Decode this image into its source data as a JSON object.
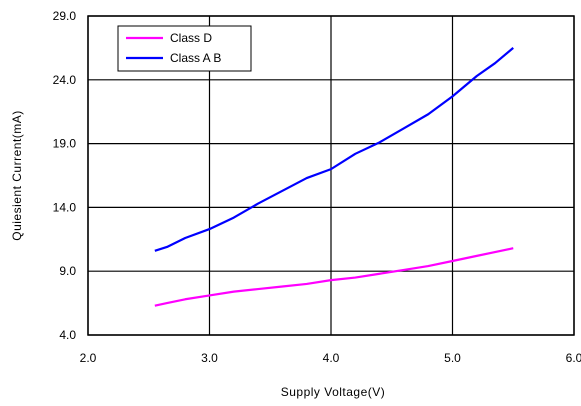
{
  "chart_data": {
    "type": "line",
    "title": "",
    "xlabel": "Supply Voltage(V)",
    "ylabel": "Quiesient Current(mA)",
    "xlim": [
      2.0,
      6.0
    ],
    "ylim": [
      4.0,
      29.0
    ],
    "x_ticks": [
      "2.0",
      "3.0",
      "4.0",
      "5.0",
      "6.0"
    ],
    "y_ticks": [
      "4.0",
      "9.0",
      "14.0",
      "19.0",
      "24.0",
      "29.0"
    ],
    "grid": true,
    "legend_position": "top-left",
    "series": [
      {
        "name": "Class D",
        "color": "#ff00ff",
        "x": [
          2.55,
          2.65,
          2.8,
          3.0,
          3.2,
          3.4,
          3.6,
          3.8,
          4.0,
          4.2,
          4.4,
          4.6,
          4.8,
          5.0,
          5.2,
          5.35,
          5.5
        ],
        "y": [
          6.3,
          6.5,
          6.8,
          7.1,
          7.4,
          7.6,
          7.8,
          8.0,
          8.3,
          8.5,
          8.8,
          9.1,
          9.4,
          9.8,
          10.2,
          10.5,
          10.8
        ]
      },
      {
        "name": "Class A B",
        "color": "#0000ff",
        "x": [
          2.55,
          2.65,
          2.8,
          3.0,
          3.2,
          3.4,
          3.6,
          3.8,
          4.0,
          4.2,
          4.4,
          4.6,
          4.8,
          5.0,
          5.2,
          5.35,
          5.5
        ],
        "y": [
          10.6,
          10.9,
          11.6,
          12.3,
          13.2,
          14.3,
          15.3,
          16.3,
          17.0,
          18.2,
          19.1,
          20.2,
          21.3,
          22.7,
          24.3,
          25.3,
          26.5
        ]
      }
    ]
  }
}
